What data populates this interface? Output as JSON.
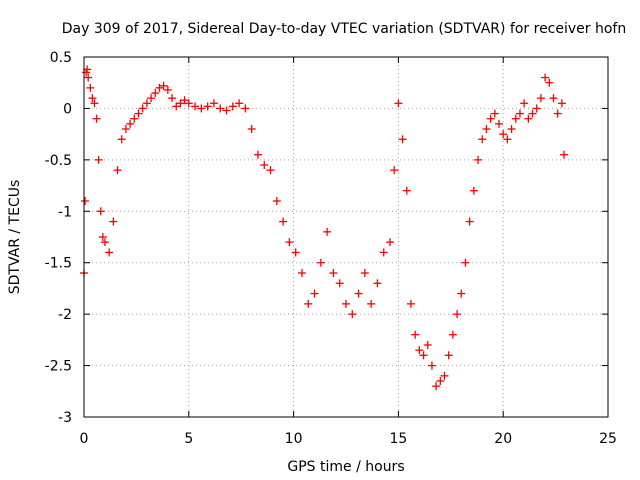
{
  "chart_data": {
    "type": "scatter",
    "title": "Day 309 of 2017, Sidereal Day-to-day VTEC variation (SDTVAR) for receiver hofn",
    "xlabel": "GPS time / hours",
    "ylabel": "SDTVAR / TECUs",
    "xlim": [
      0,
      25
    ],
    "ylim": [
      -3,
      0.5
    ],
    "x_ticks": [
      0,
      5,
      10,
      15,
      20,
      25
    ],
    "x_tick_labels": [
      "0",
      "5",
      "10",
      "15",
      "20",
      "25"
    ],
    "y_ticks": [
      0.5,
      0,
      -0.5,
      -1,
      -1.5,
      -2,
      -2.5,
      -3
    ],
    "y_tick_labels": [
      "0.5",
      "0",
      "-0.5",
      "-1",
      "-1.5",
      "-2",
      "-2.5",
      "-3"
    ],
    "grid": true,
    "marker": "+",
    "series_color": "#ff0000",
    "series": [
      {
        "name": "SDTVAR",
        "x": [
          0.0,
          0.05,
          0.1,
          0.15,
          0.2,
          0.3,
          0.4,
          0.5,
          0.6,
          0.7,
          0.8,
          0.9,
          1.0,
          1.2,
          1.4,
          1.6,
          1.8,
          2.0,
          2.2,
          2.4,
          2.6,
          2.8,
          3.0,
          3.2,
          3.4,
          3.6,
          3.8,
          4.0,
          4.2,
          4.4,
          4.6,
          4.8,
          5.0,
          5.3,
          5.6,
          5.9,
          6.2,
          6.5,
          6.8,
          7.1,
          7.4,
          7.7,
          8.0,
          8.3,
          8.6,
          8.9,
          9.2,
          9.5,
          9.8,
          10.1,
          10.4,
          10.7,
          11.0,
          11.3,
          11.6,
          11.9,
          12.2,
          12.5,
          12.8,
          13.1,
          13.4,
          13.7,
          14.0,
          14.3,
          14.6,
          14.8,
          15.0,
          15.2,
          15.4,
          15.6,
          15.8,
          16.0,
          16.2,
          16.4,
          16.6,
          16.8,
          17.0,
          17.2,
          17.4,
          17.6,
          17.8,
          18.0,
          18.2,
          18.4,
          18.6,
          18.8,
          19.0,
          19.2,
          19.4,
          19.6,
          19.8,
          20.0,
          20.2,
          20.4,
          20.6,
          20.8,
          21.0,
          21.2,
          21.4,
          21.6,
          21.8,
          22.0,
          22.2,
          22.4,
          22.6,
          22.8,
          22.9
        ],
        "y": [
          -1.6,
          -0.9,
          0.35,
          0.38,
          0.3,
          0.2,
          0.1,
          0.05,
          -0.1,
          -0.5,
          -1.0,
          -1.25,
          -1.3,
          -1.4,
          -1.1,
          -0.6,
          -0.3,
          -0.2,
          -0.15,
          -0.1,
          -0.05,
          0.0,
          0.05,
          0.1,
          0.15,
          0.2,
          0.22,
          0.18,
          0.1,
          0.02,
          0.05,
          0.08,
          0.05,
          0.02,
          0.0,
          0.02,
          0.05,
          0.0,
          -0.02,
          0.02,
          0.05,
          0.0,
          -0.2,
          -0.45,
          -0.55,
          -0.6,
          -0.9,
          -1.1,
          -1.3,
          -1.4,
          -1.6,
          -1.9,
          -1.8,
          -1.5,
          -1.2,
          -1.6,
          -1.7,
          -1.9,
          -2.0,
          -1.8,
          -1.6,
          -1.9,
          -1.7,
          -1.4,
          -1.3,
          -0.6,
          0.05,
          -0.3,
          -0.8,
          -1.9,
          -2.2,
          -2.35,
          -2.4,
          -2.3,
          -2.5,
          -2.7,
          -2.65,
          -2.6,
          -2.4,
          -2.2,
          -2.0,
          -1.8,
          -1.5,
          -1.1,
          -0.8,
          -0.5,
          -0.3,
          -0.2,
          -0.1,
          -0.05,
          -0.15,
          -0.25,
          -0.3,
          -0.2,
          -0.1,
          -0.05,
          0.05,
          -0.1,
          -0.05,
          0.0,
          0.1,
          0.3,
          0.25,
          0.1,
          -0.05,
          0.05,
          -0.45
        ]
      }
    ]
  }
}
